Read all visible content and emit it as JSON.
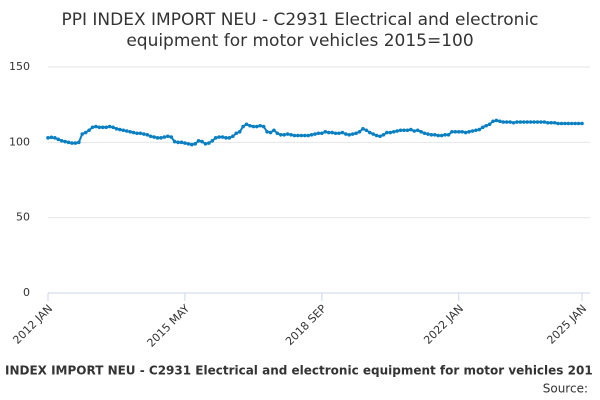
{
  "chart_data": {
    "type": "line",
    "title": [
      "PPI INDEX IMPORT NEU - C2931 Electrical and electronic",
      "equipment for motor vehicles 2015=100"
    ],
    "caption": "INDEX IMPORT NEU - C2931 Electrical and electronic equipment for motor vehicles 201",
    "source": "Source:",
    "categories": [
      "2012 JAN",
      null,
      null,
      null,
      null,
      null,
      null,
      null,
      null,
      null,
      null,
      null,
      null,
      null,
      null,
      null,
      null,
      null,
      null,
      null,
      null,
      null,
      null,
      null,
      null,
      null,
      null,
      null,
      null,
      null,
      null,
      null,
      null,
      null,
      null,
      null,
      null,
      null,
      null,
      null,
      "2015 MAY",
      null,
      null,
      null,
      null,
      null,
      null,
      null,
      null,
      null,
      null,
      null,
      null,
      null,
      null,
      null,
      null,
      null,
      null,
      null,
      null,
      null,
      null,
      null,
      null,
      null,
      null,
      null,
      null,
      null,
      null,
      null,
      null,
      null,
      null,
      null,
      null,
      null,
      null,
      null,
      "2018 SEP",
      null,
      null,
      null,
      null,
      null,
      null,
      null,
      null,
      null,
      null,
      null,
      null,
      null,
      null,
      null,
      null,
      null,
      null,
      null,
      null,
      null,
      null,
      null,
      null,
      null,
      null,
      null,
      null,
      null,
      null,
      null,
      null,
      null,
      null,
      null,
      null,
      null,
      null,
      null,
      "2022 JAN",
      null,
      null,
      null,
      null,
      null,
      null,
      null,
      null,
      null,
      null,
      null,
      null,
      null,
      null,
      null,
      null,
      null,
      null,
      null,
      null,
      null,
      null,
      null,
      null,
      null,
      null,
      null,
      null,
      null,
      null,
      null,
      null,
      null,
      null,
      null,
      "2025 JAN"
    ],
    "values": [
      103,
      103.3,
      103,
      102,
      101,
      100.5,
      100,
      99.5,
      99.5,
      100,
      105.5,
      106.5,
      108,
      110,
      110.5,
      110,
      110,
      110,
      110.5,
      110,
      109,
      108.5,
      108,
      107.5,
      107,
      106.5,
      106,
      106,
      105.5,
      105,
      104,
      103.5,
      103,
      103,
      103.5,
      104,
      103.5,
      100.5,
      100,
      100,
      99.5,
      99,
      98.5,
      99,
      101,
      100.5,
      99,
      99.5,
      101,
      103,
      103.5,
      103.5,
      103,
      103,
      104,
      106,
      107,
      110.5,
      112,
      111,
      110.5,
      110.5,
      111,
      110.5,
      107,
      106.5,
      108,
      106,
      105,
      105,
      105.5,
      105,
      104.5,
      104.5,
      104.5,
      104.5,
      104.5,
      105,
      105.5,
      106,
      106,
      107,
      106.5,
      106.5,
      106,
      106,
      106.5,
      105.5,
      105,
      105.5,
      106,
      107,
      109,
      108,
      106.5,
      105.5,
      104.5,
      104,
      105,
      106.5,
      106.5,
      107,
      107.5,
      108,
      108,
      108,
      108.5,
      107.5,
      108,
      107,
      106,
      105.5,
      105,
      105,
      104.5,
      104.5,
      105,
      105,
      107,
      107,
      107,
      107,
      106.5,
      107,
      107.5,
      108,
      108.5,
      110,
      111,
      112,
      114,
      114.5,
      114,
      113.5,
      113.5,
      113.5,
      113,
      113.5,
      113.5,
      113.5,
      113.5,
      113.5,
      113.5,
      113.5,
      113.5,
      113.5,
      113,
      113,
      113,
      112.5,
      112.5,
      112.5,
      112.5,
      112.5,
      112.5,
      112.5,
      112.5
    ],
    "color": "#0a7fc1",
    "ylim": [
      0,
      150
    ],
    "yticks": [
      0,
      50,
      100,
      150
    ],
    "grid": true
  }
}
